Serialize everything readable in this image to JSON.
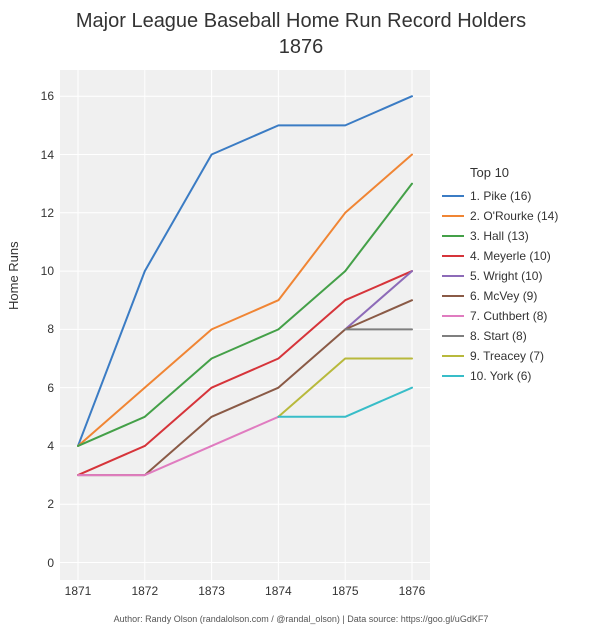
{
  "chart": {
    "type": "line",
    "title_line1": "Major League Baseball Home Run Record Holders",
    "title_line2": "1876",
    "title_fontsize": 20,
    "ylabel": "Home Runs",
    "label_fontsize": 13,
    "credit": "Author: Randy Olson (randalolson.com / @randal_olson) | Data source: https://goo.gl/uGdKF7",
    "credit_fontsize": 9,
    "background_color": "#ffffff",
    "plot_background_color": "#f0f0f0",
    "grid_color": "#ffffff",
    "text_color": "#333333",
    "tick_fontsize": 12,
    "line_width": 2,
    "x": {
      "categories": [
        "1871",
        "1872",
        "1873",
        "1874",
        "1875",
        "1876"
      ],
      "lim": [
        1871,
        1876
      ]
    },
    "y": {
      "lim": [
        -0.6,
        16.9
      ],
      "ticks": [
        0,
        2,
        4,
        6,
        8,
        10,
        12,
        14,
        16
      ]
    },
    "legend_title": "Top 10",
    "series": [
      {
        "label": "1. Pike (16)",
        "color": "#3b7cc4",
        "values": [
          4,
          10,
          14,
          15,
          15,
          16
        ]
      },
      {
        "label": "2. O'Rourke (14)",
        "color": "#f08534",
        "values": [
          4,
          6,
          8,
          9,
          12,
          14
        ]
      },
      {
        "label": "3. Hall (13)",
        "color": "#44a048",
        "values": [
          4,
          5,
          7,
          8,
          10,
          13
        ]
      },
      {
        "label": "4. Meyerle (10)",
        "color": "#d6343a",
        "values": [
          3,
          4,
          6,
          7,
          9,
          10
        ]
      },
      {
        "label": "5. Wright (10)",
        "color": "#8d6bb8",
        "values": [
          null,
          null,
          null,
          null,
          8,
          10
        ]
      },
      {
        "label": "6. McVey (9)",
        "color": "#8a5a46",
        "values": [
          3,
          3,
          5,
          6,
          8,
          9
        ]
      },
      {
        "label": "7. Cuthbert (8)",
        "color": "#e07cc0",
        "values": [
          3,
          3,
          4,
          5,
          null,
          null
        ]
      },
      {
        "label": "8. Start (8)",
        "color": "#7f7f7f",
        "values": [
          null,
          null,
          null,
          null,
          8,
          8
        ]
      },
      {
        "label": "9. Treacey (7)",
        "color": "#b8b93c",
        "values": [
          null,
          null,
          null,
          5,
          7,
          7
        ]
      },
      {
        "label": "10. York (6)",
        "color": "#38bdc8",
        "values": [
          null,
          null,
          null,
          5,
          5,
          6
        ]
      }
    ]
  }
}
